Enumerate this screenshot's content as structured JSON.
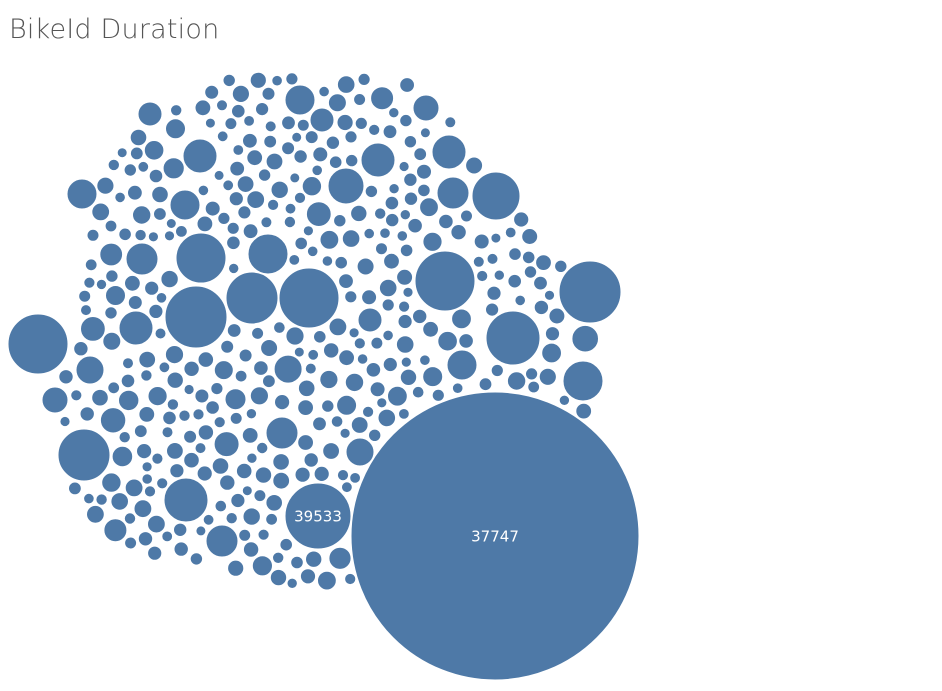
{
  "title": "BikeId Duration",
  "colors": {
    "bubble": "#4e79a7",
    "title": "#555555",
    "label": "#ffffff"
  },
  "chart_data": {
    "type": "packed-bubble",
    "title": "BikeId Duration",
    "labeled_points": [
      {
        "label": "37747",
        "value": 37747
      },
      {
        "label": "39533",
        "value": 39533
      }
    ]
  }
}
